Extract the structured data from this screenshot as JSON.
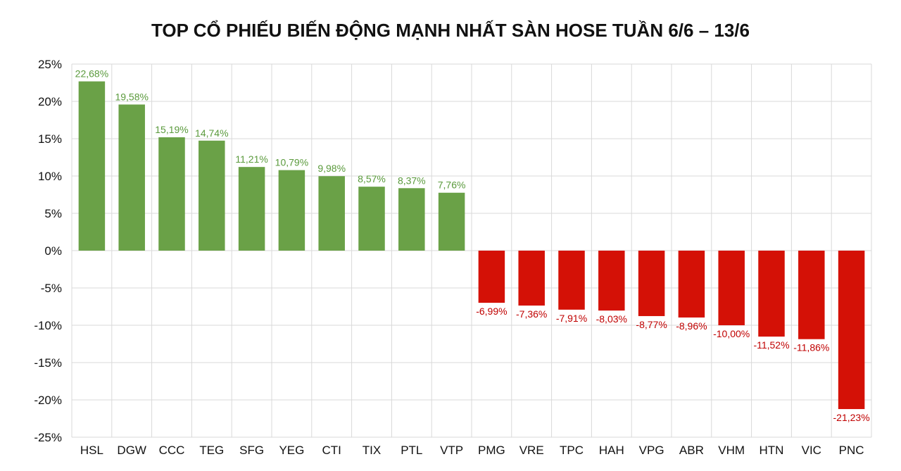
{
  "chart_data": {
    "type": "bar",
    "title": "TOP CỔ PHIẾU BIẾN ĐỘNG MẠNH NHẤT SÀN HOSE TUẦN 6/6 – 13/6",
    "xlabel": "",
    "ylabel": "",
    "ylim": [
      -25,
      25
    ],
    "yticks": [
      "25%",
      "20%",
      "15%",
      "10%",
      "5%",
      "0%",
      "-5%",
      "-10%",
      "-15%",
      "-20%",
      "-25%"
    ],
    "ytick_values": [
      25,
      20,
      15,
      10,
      5,
      0,
      -5,
      -10,
      -15,
      -20,
      -25
    ],
    "grid": true,
    "legend": "none",
    "categories": [
      "HSL",
      "DGW",
      "CCC",
      "TEG",
      "SFG",
      "YEG",
      "CTI",
      "TIX",
      "PTL",
      "VTP",
      "PMG",
      "VRE",
      "TPC",
      "HAH",
      "VPG",
      "ABR",
      "VHM",
      "HTN",
      "VIC",
      "PNC"
    ],
    "values": [
      22.68,
      19.58,
      15.19,
      14.74,
      11.21,
      10.79,
      9.98,
      8.57,
      8.37,
      7.76,
      -6.99,
      -7.36,
      -7.91,
      -8.03,
      -8.77,
      -8.96,
      -10.0,
      -11.52,
      -11.86,
      -21.23
    ],
    "data_labels": [
      "22,68%",
      "19,58%",
      "15,19%",
      "14,74%",
      "11,21%",
      "10,79%",
      "9,98%",
      "8,57%",
      "8,37%",
      "7,76%",
      "-6,99%",
      "-7,36%",
      "-7,91%",
      "-8,03%",
      "-8,77%",
      "-8,96%",
      "-10,00%",
      "-11,52%",
      "-11,86%",
      "-21,23%"
    ],
    "colors": {
      "positive": "#6aa147",
      "negative": "#d41106",
      "positive_label": "#5a9a3c",
      "negative_label": "#c00000",
      "grid": "#d9d9d9"
    }
  }
}
